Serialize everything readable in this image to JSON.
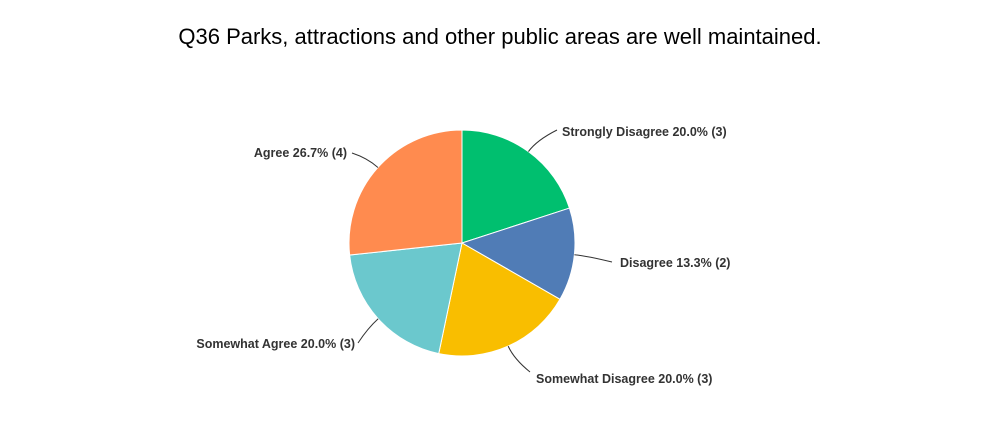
{
  "chart_data": {
    "type": "pie",
    "title": "Q36 Parks, attractions and other public areas are well maintained.",
    "slices": [
      {
        "label": "Strongly Disagree",
        "percent": "20.0%",
        "count": 3,
        "value": 20.0,
        "color": "#00bf6f"
      },
      {
        "label": "Disagree",
        "percent": "13.3%",
        "count": 2,
        "value": 13.3,
        "color": "#507cb6"
      },
      {
        "label": "Somewhat Disagree",
        "percent": "20.0%",
        "count": 3,
        "value": 20.0,
        "color": "#f9be00"
      },
      {
        "label": "Somewhat Agree",
        "percent": "20.0%",
        "count": 3,
        "value": 20.0,
        "color": "#6bc8cd"
      },
      {
        "label": "Agree",
        "percent": "26.7%",
        "count": 4,
        "value": 26.7,
        "color": "#ff8b4f"
      }
    ],
    "start_angle": "top",
    "direction": "clockwise",
    "legend": "none"
  }
}
